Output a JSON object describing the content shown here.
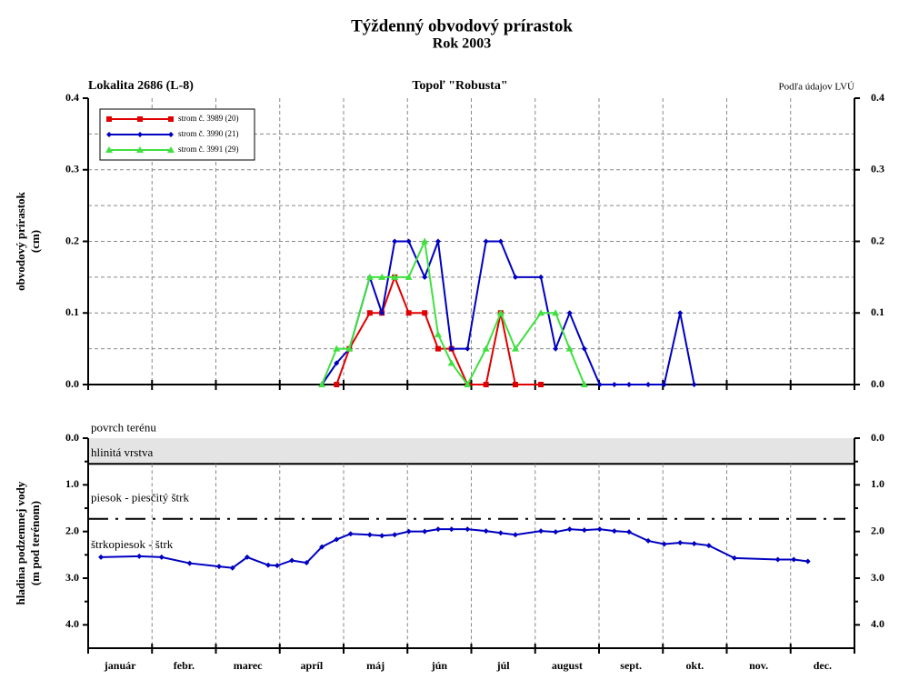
{
  "chart_data": [
    {
      "type": "line",
      "title": "Týždenný obvodový prírastok",
      "subtitle": "Rok 2003",
      "location": "Lokalita 2686 (L-8)",
      "species": "Topoľ \"Robusta\"",
      "source": "Podľa údajov LVÚ",
      "ylabel": [
        "obvodový prírastok",
        "(cm)"
      ],
      "xlim": [
        0,
        12
      ],
      "xticks": [
        0,
        1,
        2,
        3,
        4,
        5,
        6,
        7,
        8,
        9,
        10,
        11,
        12
      ],
      "ylim": [
        0,
        0.4
      ],
      "yticks": [
        {
          "value": 0,
          "label": "0.0"
        },
        {
          "value": 0.1,
          "label": "0.1"
        },
        {
          "value": 0.2,
          "label": "0.2"
        },
        {
          "value": 0.3,
          "label": "0.3"
        },
        {
          "value": 0.4,
          "label": "0.4"
        }
      ],
      "grid_yticks": [
        0.05,
        0.1,
        0.15,
        0.2,
        0.25,
        0.3,
        0.35
      ],
      "grid": true,
      "legend": "upper left",
      "series": [
        {
          "name": "strom č. 3989 (20)",
          "color": "#e00000",
          "marker": "square",
          "x": [
            3.89,
            4.09,
            4.41,
            4.6,
            4.8,
            5.02,
            5.27,
            5.48,
            5.69,
            5.94,
            6.23,
            6.46,
            6.69,
            7.09
          ],
          "values": [
            0,
            0.05,
            0.1,
            0.1,
            0.15,
            0.1,
            0.1,
            0.05,
            0.05,
            0,
            0,
            0.1,
            0,
            0
          ]
        },
        {
          "name": "strom č. 3990 (21)",
          "color": "#0000c0",
          "marker": "diamond",
          "x": [
            3.66,
            3.89,
            4.09,
            4.41,
            4.6,
            4.8,
            5.02,
            5.27,
            5.48,
            5.69,
            5.94,
            6.23,
            6.46,
            6.69,
            7.09,
            7.32,
            7.54,
            7.77,
            8.01,
            8.24,
            8.47,
            8.77,
            9.02,
            9.27,
            9.49
          ],
          "values": [
            0,
            0.03,
            0.05,
            0.15,
            0.1,
            0.2,
            0.2,
            0.15,
            0.2,
            0.05,
            0.05,
            0.2,
            0.2,
            0.15,
            0.15,
            0.05,
            0.1,
            0.05,
            0,
            0,
            0,
            0,
            0,
            0.1,
            0
          ]
        },
        {
          "name": "strom č. 3991 (29)",
          "color": "#40e040",
          "marker": "triangle",
          "x": [
            3.66,
            3.89,
            4.09,
            4.41,
            4.6,
            4.8,
            5.02,
            5.27,
            5.48,
            5.69,
            5.94,
            6.23,
            6.46,
            6.69,
            7.09,
            7.32,
            7.54,
            7.77
          ],
          "values": [
            0,
            0.05,
            0.05,
            0.15,
            0.15,
            0.15,
            0.15,
            0.2,
            0.07,
            0.03,
            0,
            0.05,
            0.1,
            0.05,
            0.1,
            0.1,
            0.05,
            0
          ]
        }
      ]
    },
    {
      "type": "line",
      "ylabel": [
        "hladina podzemnej vody",
        "(m pod terénom)"
      ],
      "categories": [
        "január",
        "febr.",
        "marec",
        "apríl",
        "máj",
        "jún",
        "júl",
        "august",
        "sept.",
        "okt.",
        "nov.",
        "dec."
      ],
      "xlim": [
        0,
        12
      ],
      "xticks": [
        0,
        1,
        2,
        3,
        4,
        5,
        6,
        7,
        8,
        9,
        10,
        11,
        12
      ],
      "ylim": [
        0,
        4.5
      ],
      "y_inverted": true,
      "yticks": [
        {
          "value": 0,
          "label": "0.0"
        },
        {
          "value": 1,
          "label": "1.0"
        },
        {
          "value": 2,
          "label": "2.0"
        },
        {
          "value": 3,
          "label": "3.0"
        },
        {
          "value": 4,
          "label": "4.0"
        }
      ],
      "minor_yticks": [
        0.5,
        1.5,
        2.5,
        3.5
      ],
      "grid": "x",
      "layers": [
        {
          "label": "hlinitá vrstva",
          "top": 0,
          "bottom": 0.55,
          "color": "#e4e4e4"
        }
      ],
      "boundary": 1.73,
      "annotations": [
        {
          "text": "povrch terénu",
          "y": -0.2
        },
        {
          "text": "piesok - piesčitý štrk",
          "y": 1.3
        },
        {
          "text": "štrkopiesok - štrk",
          "y": 2.3
        }
      ],
      "series": [
        {
          "name": "hladina",
          "color": "#0000c0",
          "x": [
            0.2,
            0.8,
            1.15,
            1.59,
            2.05,
            2.26,
            2.49,
            2.82,
            2.96,
            3.19,
            3.42,
            3.66,
            3.89,
            4.11,
            4.41,
            4.6,
            4.8,
            5.02,
            5.27,
            5.48,
            5.69,
            5.94,
            6.23,
            6.46,
            6.69,
            7.09,
            7.32,
            7.54,
            7.77,
            8.01,
            8.24,
            8.47,
            8.77,
            9.02,
            9.27,
            9.49,
            9.72,
            10.12,
            10.8,
            11.05,
            11.27
          ],
          "values": [
            2.55,
            2.53,
            2.55,
            2.68,
            2.75,
            2.78,
            2.55,
            2.72,
            2.73,
            2.62,
            2.67,
            2.33,
            2.17,
            2.05,
            2.07,
            2.09,
            2.07,
            2,
            2,
            1.95,
            1.95,
            1.95,
            1.99,
            2.03,
            2.07,
            1.99,
            2.01,
            1.95,
            1.97,
            1.95,
            1.99,
            2.01,
            2.2,
            2.27,
            2.24,
            2.26,
            2.3,
            2.57,
            2.6,
            2.6,
            2.64
          ]
        }
      ]
    }
  ]
}
